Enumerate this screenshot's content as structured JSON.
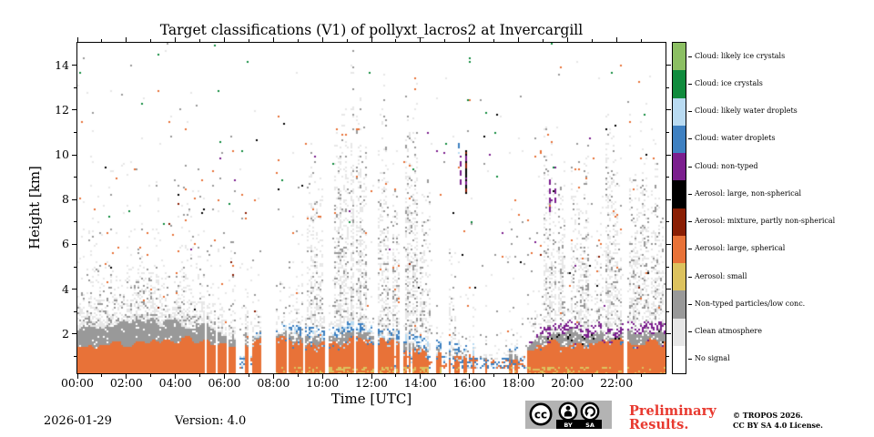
{
  "title": "Target classifications (V1) of pollyxt_lacros2 at Invercargill",
  "footer": {
    "date": "2026-01-29",
    "version": "Version: 4.0",
    "preliminary_line1": "Preliminary",
    "preliminary_line2": "Results.",
    "preliminary_color": "#e8392f",
    "copyright_line1": "© TROPOS 2026.",
    "copyright_line2": "CC BY SA 4.0 License.",
    "badge": {
      "cc": "cc",
      "by": "BY",
      "sa": "SA",
      "bg": "#b3b3b3"
    }
  },
  "chart_data": {
    "type": "heatmap",
    "title": "Target classifications (V1) of pollyxt_lacros2 at Invercargill",
    "xlabel": "Time [UTC]",
    "ylabel": "Height [km]",
    "xlim_hours": [
      0,
      24
    ],
    "ylim_km": [
      0.25,
      15.0
    ],
    "grid": false,
    "legend_position": "right-colorbar",
    "x_axis": {
      "major_hours": [
        0,
        2,
        4,
        6,
        8,
        10,
        12,
        14,
        16,
        18,
        20,
        22
      ],
      "major_labels": [
        "00:00",
        "02:00",
        "04:00",
        "06:00",
        "08:00",
        "10:00",
        "12:00",
        "14:00",
        "16:00",
        "18:00",
        "20:00",
        "22:00"
      ],
      "minor_hours": [
        1,
        3,
        5,
        7,
        9,
        11,
        13,
        15,
        17,
        19,
        21,
        23
      ]
    },
    "y_axis": {
      "major_km": [
        2,
        4,
        6,
        8,
        10,
        12,
        14
      ],
      "major_labels": [
        "2",
        "4",
        "6",
        "8",
        "10",
        "12",
        "14"
      ],
      "minor_km": [
        1,
        3,
        5,
        7,
        9,
        11,
        13
      ]
    },
    "categories": [
      {
        "id": "likely_ice",
        "label": "Cloud: likely ice crystals",
        "color": "#8CBF63"
      },
      {
        "id": "ice",
        "label": "Cloud: ice crystals",
        "color": "#108B3D"
      },
      {
        "id": "likely_water",
        "label": "Cloud: likely water droplets",
        "color": "#B9DBF2"
      },
      {
        "id": "water",
        "label": "Cloud: water droplets",
        "color": "#3E80C1"
      },
      {
        "id": "cloud_nt",
        "label": "Cloud: non-typed",
        "color": "#7B1E8E"
      },
      {
        "id": "aer_large_ns",
        "label": "Aerosol: large, non-spherical",
        "color": "#000000"
      },
      {
        "id": "aer_mix",
        "label": "Aerosol: mixture, partly non-spherical",
        "color": "#8A1E04"
      },
      {
        "id": "aer_large_s",
        "label": "Aerosol: large, spherical",
        "color": "#E87238"
      },
      {
        "id": "aer_small",
        "label": "Aerosol: small",
        "color": "#DCC25E"
      },
      {
        "id": "nt_low",
        "label": "Non-typed particles/low conc.",
        "color": "#999999"
      },
      {
        "id": "clean",
        "label": "Clean atmosphere",
        "color": "#E7E7E7"
      },
      {
        "id": "nosig",
        "label": "No signal",
        "color": "#FFFFFF"
      }
    ],
    "summary": "Boundary-layer aerosol (large, spherical) up to ~1.0-1.9 km all day, capped by non-typed particles; water-droplet cloud fragments on layer top 08:00-18:00; non-typed cloud specks on layer top 19:00-24:00; speckled clean-atmosphere/low-conc. plumes reaching 10-14 km around 09:30-14:00 and 19:00-24:00; cirrus-level non-typed/mixture streaks near 15:40 (8.4-10.2 km) and 19:20 (7.4-8.9 km); white no-signal gaps mainly 05:00-08:10, 16:20-18:40 and 22:20.",
    "render": {
      "seed": 7,
      "hours_sampled": [
        0,
        1,
        2,
        3,
        4,
        5,
        6,
        7,
        8,
        9,
        10,
        11,
        12,
        13,
        14,
        15,
        16,
        17,
        18,
        19,
        20,
        21,
        22,
        23,
        24
      ],
      "layer": {
        "top_km": [
          1.45,
          1.5,
          1.55,
          1.6,
          1.8,
          1.85,
          1.6,
          1.55,
          1.7,
          1.75,
          1.7,
          1.75,
          1.7,
          1.6,
          1.25,
          1.1,
          1.0,
          0.95,
          1.0,
          1.65,
          1.7,
          1.7,
          1.65,
          1.7,
          1.7
        ],
        "gray_top_km": [
          2.35,
          2.45,
          2.5,
          2.55,
          2.5,
          2.4,
          2.1,
          1.9,
          1.95,
          1.95,
          1.9,
          1.95,
          1.9,
          1.8,
          1.4,
          1.25,
          1.1,
          1.05,
          1.1,
          2.0,
          2.1,
          2.05,
          2.0,
          2.05,
          2.05
        ],
        "solidity": [
          1,
          1,
          1,
          1,
          1,
          0.92,
          0.8,
          0.72,
          0.93,
          1,
          0.96,
          1,
          0.95,
          0.9,
          0.7,
          0.55,
          0.3,
          0.18,
          0.3,
          1,
          1,
          0.97,
          0.93,
          1,
          1
        ],
        "cap_blue": [
          0,
          0,
          0,
          0,
          0,
          0,
          0.1,
          0.2,
          0.8,
          0.8,
          0.85,
          0.85,
          0.85,
          0.9,
          1,
          1,
          0.9,
          0.7,
          0.5,
          0.3,
          0.25,
          0.2,
          0.25,
          0.3,
          0.3
        ],
        "cap_purple": [
          0,
          0,
          0,
          0,
          0,
          0,
          0,
          0,
          0.1,
          0.2,
          0.3,
          0.3,
          0.3,
          0.25,
          0.2,
          0.15,
          0.1,
          0.05,
          0.2,
          0.8,
          0.8,
          0.75,
          0.7,
          0.75,
          0.75
        ],
        "speckle_top_km": [
          4.2,
          4.3,
          4.4,
          4.5,
          4.4,
          4.2,
          3.6,
          3.2,
          3.2,
          3.1,
          3.0,
          3.0,
          3.0,
          2.9,
          2.4,
          2.0,
          1.8,
          1.6,
          2.0,
          2.8,
          3.0,
          3.0,
          3.0,
          3.0,
          3.0
        ],
        "yellow": [
          0,
          0,
          0,
          0,
          0,
          0,
          0,
          0,
          0.3,
          0.5,
          0.7,
          0.7,
          0.6,
          0.6,
          0.7,
          0.6,
          0.3,
          0.1,
          0.2,
          0.8,
          0.6,
          0.3,
          0.2,
          0.2,
          0.2
        ]
      },
      "plumes": [
        [
          6.2,
          7.0,
          3.5,
          0.5
        ],
        [
          8.2,
          8.7,
          5.5,
          0.55
        ],
        [
          8.9,
          9.2,
          7,
          0.5
        ],
        [
          9.35,
          10.05,
          11,
          0.8
        ],
        [
          10.5,
          11.1,
          12.5,
          0.85
        ],
        [
          11.15,
          11.85,
          14,
          0.95
        ],
        [
          12.25,
          12.7,
          13,
          0.85
        ],
        [
          12.85,
          13.15,
          10,
          0.8
        ],
        [
          13.35,
          13.9,
          14,
          0.85
        ],
        [
          14.0,
          14.45,
          9,
          0.6
        ],
        [
          15.15,
          15.45,
          7,
          0.5
        ],
        [
          19.0,
          19.55,
          10.5,
          0.8
        ],
        [
          19.6,
          19.95,
          12,
          0.85
        ],
        [
          20.15,
          20.9,
          10.5,
          0.8
        ],
        [
          21.1,
          21.45,
          9,
          0.7
        ],
        [
          21.55,
          22.25,
          12,
          0.85
        ],
        [
          22.5,
          23.3,
          12,
          0.85
        ],
        [
          23.4,
          23.95,
          10,
          0.8
        ]
      ],
      "no_signal_gaps": [
        [
          5.18,
          5.3
        ],
        [
          5.64,
          5.7
        ],
        [
          6.06,
          6.18
        ],
        [
          6.48,
          6.6
        ],
        [
          6.96,
          7.08
        ],
        [
          7.5,
          8.1
        ],
        [
          8.52,
          8.6
        ],
        [
          9.22,
          9.32
        ],
        [
          10.1,
          10.22
        ],
        [
          11.32,
          11.4
        ],
        [
          12.14,
          12.24
        ],
        [
          13.18,
          13.3
        ],
        [
          14.52,
          14.64
        ],
        [
          15.06,
          15.14
        ],
        [
          16.32,
          16.44
        ],
        [
          22.3,
          22.46
        ]
      ],
      "streaks": [
        {
          "t": 15.55,
          "k0": 10.2,
          "k1": 10.6,
          "style": "dash",
          "colors": [
            "likely_water",
            "water"
          ]
        },
        {
          "t": 15.62,
          "k0": 8.6,
          "k1": 9.9,
          "style": "dash",
          "colors": [
            "cloud_nt"
          ]
        },
        {
          "t": 15.8,
          "k0": 8.4,
          "k1": 10.15,
          "style": "solid",
          "colors": [
            "aer_mix",
            "aer_large_ns",
            "cloud_nt"
          ]
        },
        {
          "t": 19.28,
          "k0": 7.4,
          "k1": 8.9,
          "style": "dash",
          "colors": [
            "cloud_nt"
          ]
        },
        {
          "t": 19.5,
          "k0": 8.0,
          "k1": 8.6,
          "style": "dash",
          "colors": [
            "cloud_nt"
          ]
        }
      ]
    }
  }
}
